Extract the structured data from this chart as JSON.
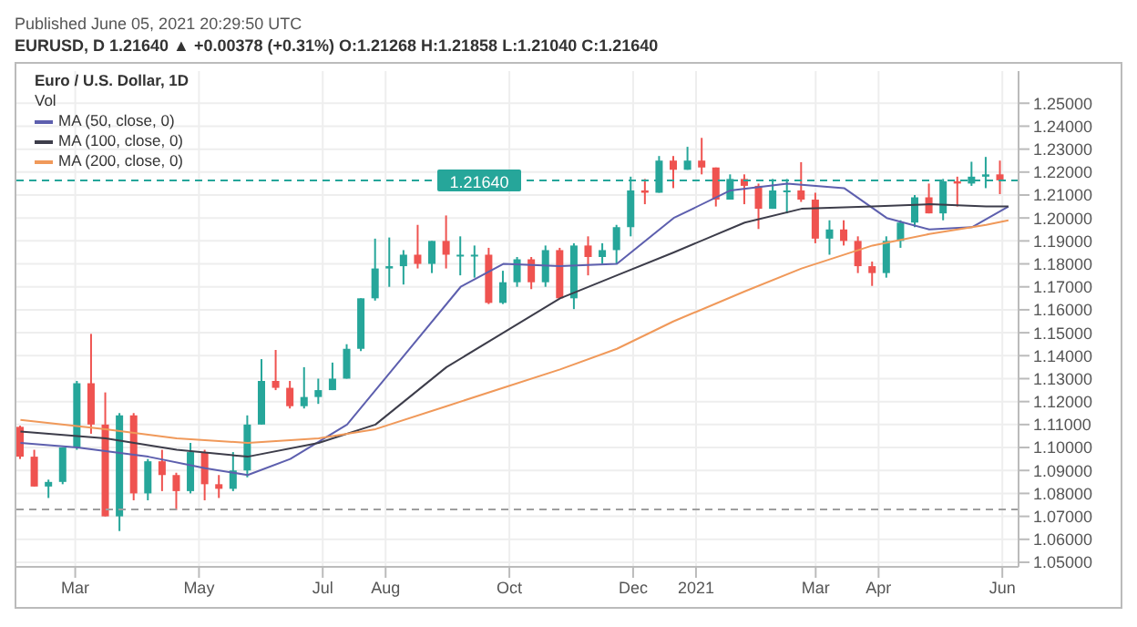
{
  "chart_data": {
    "type": "candlestick",
    "title": "Euro / U.S. Dollar, 1D",
    "subtitle": "EURUSD, D 1.21640 ▲ +0.00378 (+0.31%) O:1.21268 H:1.21858 L:1.21040 C:1.21640",
    "annotations": [
      "Published June 05, 2021 20:29:50 UTC",
      "Vol"
    ],
    "x": [
      "2020-02-03",
      "2020-02-10",
      "2020-02-17",
      "2020-02-24",
      "2020-03-02",
      "2020-03-09",
      "2020-03-16",
      "2020-03-23",
      "2020-03-30",
      "2020-04-06",
      "2020-04-13",
      "2020-04-20",
      "2020-04-27",
      "2020-05-04",
      "2020-05-11",
      "2020-05-18",
      "2020-05-25",
      "2020-06-01",
      "2020-06-08",
      "2020-06-15",
      "2020-06-22",
      "2020-06-29",
      "2020-07-06",
      "2020-07-13",
      "2020-07-20",
      "2020-07-27",
      "2020-08-03",
      "2020-08-10",
      "2020-08-17",
      "2020-08-24",
      "2020-08-31",
      "2020-09-07",
      "2020-09-14",
      "2020-09-21",
      "2020-09-28",
      "2020-10-05",
      "2020-10-12",
      "2020-10-19",
      "2020-10-26",
      "2020-11-02",
      "2020-11-09",
      "2020-11-16",
      "2020-11-23",
      "2020-11-30",
      "2020-12-07",
      "2020-12-14",
      "2020-12-21",
      "2020-12-28",
      "2021-01-04",
      "2021-01-11",
      "2021-01-18",
      "2021-01-25",
      "2021-02-01",
      "2021-02-08",
      "2021-02-15",
      "2021-02-22",
      "2021-03-01",
      "2021-03-08",
      "2021-03-15",
      "2021-03-22",
      "2021-03-29",
      "2021-04-05",
      "2021-04-12",
      "2021-04-19",
      "2021-04-26",
      "2021-05-03",
      "2021-05-10",
      "2021-05-17",
      "2021-05-24",
      "2021-05-31"
    ],
    "ohlc": [
      [
        1.109,
        1.1095,
        1.095,
        1.096
      ],
      [
        1.096,
        1.099,
        1.083,
        1.083
      ],
      [
        1.083,
        1.086,
        1.078,
        1.085
      ],
      [
        1.085,
        1.1,
        1.084,
        1.1
      ],
      [
        1.1,
        1.129,
        1.099,
        1.128
      ],
      [
        1.128,
        1.1495,
        1.106,
        1.11
      ],
      [
        1.11,
        1.124,
        1.07,
        1.07
      ],
      [
        1.07,
        1.115,
        1.0636,
        1.114
      ],
      [
        1.114,
        1.115,
        1.077,
        1.08
      ],
      [
        1.08,
        1.095,
        1.077,
        1.094
      ],
      [
        1.094,
        1.099,
        1.081,
        1.088
      ],
      [
        1.088,
        1.089,
        1.0727,
        1.081
      ],
      [
        1.081,
        1.102,
        1.08,
        1.098
      ],
      [
        1.098,
        1.099,
        1.077,
        1.084
      ],
      [
        1.084,
        1.088,
        1.078,
        1.082
      ],
      [
        1.082,
        1.098,
        1.081,
        1.09
      ],
      [
        1.09,
        1.114,
        1.087,
        1.11
      ],
      [
        1.11,
        1.1385,
        1.11,
        1.129
      ],
      [
        1.129,
        1.1425,
        1.125,
        1.126
      ],
      [
        1.126,
        1.129,
        1.117,
        1.118
      ],
      [
        1.118,
        1.135,
        1.117,
        1.122
      ],
      [
        1.122,
        1.13,
        1.119,
        1.125
      ],
      [
        1.125,
        1.137,
        1.125,
        1.13
      ],
      [
        1.13,
        1.145,
        1.13,
        1.143
      ],
      [
        1.143,
        1.165,
        1.142,
        1.165
      ],
      [
        1.165,
        1.191,
        1.164,
        1.178
      ],
      [
        1.178,
        1.1915,
        1.17,
        1.179
      ],
      [
        1.179,
        1.186,
        1.171,
        1.184
      ],
      [
        1.184,
        1.197,
        1.178,
        1.18
      ],
      [
        1.18,
        1.19,
        1.176,
        1.19
      ],
      [
        1.19,
        1.2011,
        1.178,
        1.184
      ],
      [
        1.184,
        1.192,
        1.175,
        1.184
      ],
      [
        1.184,
        1.188,
        1.174,
        1.184
      ],
      [
        1.184,
        1.187,
        1.1625,
        1.163
      ],
      [
        1.163,
        1.177,
        1.1625,
        1.172
      ],
      [
        1.172,
        1.183,
        1.17,
        1.182
      ],
      [
        1.182,
        1.183,
        1.169,
        1.172
      ],
      [
        1.172,
        1.188,
        1.17,
        1.186
      ],
      [
        1.186,
        1.187,
        1.165,
        1.165
      ],
      [
        1.165,
        1.189,
        1.1603,
        1.188
      ],
      [
        1.188,
        1.192,
        1.175,
        1.183
      ],
      [
        1.183,
        1.189,
        1.18,
        1.186
      ],
      [
        1.186,
        1.197,
        1.18,
        1.196
      ],
      [
        1.196,
        1.218,
        1.192,
        1.212
      ],
      [
        1.212,
        1.217,
        1.206,
        1.211
      ],
      [
        1.211,
        1.227,
        1.211,
        1.225
      ],
      [
        1.225,
        1.227,
        1.213,
        1.221
      ],
      [
        1.221,
        1.231,
        1.221,
        1.225
      ],
      [
        1.225,
        1.2349,
        1.219,
        1.222
      ],
      [
        1.222,
        1.222,
        1.205,
        1.208
      ],
      [
        1.208,
        1.219,
        1.208,
        1.217
      ],
      [
        1.217,
        1.219,
        1.206,
        1.214
      ],
      [
        1.214,
        1.215,
        1.1952,
        1.204
      ],
      [
        1.204,
        1.217,
        1.204,
        1.212
      ],
      [
        1.212,
        1.217,
        1.202,
        1.212
      ],
      [
        1.212,
        1.2243,
        1.207,
        1.208
      ],
      [
        1.208,
        1.211,
        1.189,
        1.191
      ],
      [
        1.191,
        1.199,
        1.184,
        1.195
      ],
      [
        1.195,
        1.199,
        1.188,
        1.19
      ],
      [
        1.19,
        1.192,
        1.176,
        1.179
      ],
      [
        1.179,
        1.181,
        1.1704,
        1.176
      ],
      [
        1.176,
        1.192,
        1.174,
        1.19
      ],
      [
        1.19,
        1.199,
        1.187,
        1.198
      ],
      [
        1.198,
        1.21,
        1.196,
        1.209
      ],
      [
        1.209,
        1.215,
        1.202,
        1.202
      ],
      [
        1.202,
        1.217,
        1.199,
        1.216
      ],
      [
        1.216,
        1.218,
        1.205,
        1.215
      ],
      [
        1.215,
        1.2245,
        1.214,
        1.218
      ],
      [
        1.218,
        1.2266,
        1.213,
        1.219
      ],
      [
        1.219,
        1.225,
        1.2104,
        1.2164
      ]
    ],
    "colors": [
      "#ef5350",
      "#ef5350",
      "#26a69a",
      "#26a69a",
      "#26a69a",
      "#ef5350",
      "#ef5350",
      "#26a69a",
      "#ef5350",
      "#26a69a",
      "#ef5350",
      "#ef5350",
      "#26a69a",
      "#ef5350",
      "#ef5350",
      "#26a69a",
      "#26a69a",
      "#26a69a",
      "#ef5350",
      "#ef5350",
      "#26a69a",
      "#26a69a",
      "#26a69a",
      "#26a69a",
      "#26a69a",
      "#26a69a",
      "#26a69a",
      "#26a69a",
      "#ef5350",
      "#26a69a",
      "#ef5350",
      "#26a69a",
      "#26a69a",
      "#ef5350",
      "#26a69a",
      "#26a69a",
      "#ef5350",
      "#26a69a",
      "#ef5350",
      "#26a69a",
      "#ef5350",
      "#26a69a",
      "#26a69a",
      "#26a69a",
      "#ef5350",
      "#26a69a",
      "#ef5350",
      "#26a69a",
      "#ef5350",
      "#ef5350",
      "#26a69a",
      "#ef5350",
      "#ef5350",
      "#26a69a",
      "#26a69a",
      "#ef5350",
      "#ef5350",
      "#26a69a",
      "#ef5350",
      "#ef5350",
      "#ef5350",
      "#26a69a",
      "#26a69a",
      "#26a69a",
      "#ef5350",
      "#26a69a",
      "#ef5350",
      "#26a69a",
      "#26a69a",
      "#ef5350"
    ],
    "series": [
      {
        "name": "MA (50, close, 0)",
        "type": "line",
        "color": "#5d5fae",
        "x": [
          "2020-02-03",
          "2020-03-02",
          "2020-04-06",
          "2020-05-04",
          "2020-05-25",
          "2020-06-15",
          "2020-07-13",
          "2020-08-10",
          "2020-09-07",
          "2020-09-28",
          "2020-10-26",
          "2020-11-23",
          "2020-12-21",
          "2021-01-18",
          "2021-02-15",
          "2021-03-15",
          "2021-04-05",
          "2021-04-26",
          "2021-05-17",
          "2021-06-04"
        ],
        "values": [
          1.102,
          1.1,
          1.096,
          1.091,
          1.088,
          1.095,
          1.11,
          1.14,
          1.17,
          1.18,
          1.179,
          1.18,
          1.2,
          1.212,
          1.215,
          1.213,
          1.2,
          1.195,
          1.196,
          1.205
        ]
      },
      {
        "name": "MA (100, close, 0)",
        "type": "line",
        "color": "#3d3d4a",
        "x": [
          "2020-02-03",
          "2020-03-16",
          "2020-04-20",
          "2020-05-25",
          "2020-06-29",
          "2020-07-27",
          "2020-08-31",
          "2020-09-28",
          "2020-10-26",
          "2020-11-23",
          "2020-12-21",
          "2021-01-25",
          "2021-02-22",
          "2021-03-29",
          "2021-04-26",
          "2021-05-24",
          "2021-06-04"
        ],
        "values": [
          1.107,
          1.104,
          1.099,
          1.096,
          1.102,
          1.11,
          1.135,
          1.15,
          1.165,
          1.175,
          1.185,
          1.198,
          1.204,
          1.205,
          1.206,
          1.205,
          1.205
        ]
      },
      {
        "name": "MA (200, close, 0)",
        "type": "line",
        "color": "#f0995a",
        "x": [
          "2020-02-03",
          "2020-03-16",
          "2020-04-20",
          "2020-05-25",
          "2020-06-29",
          "2020-07-27",
          "2020-08-31",
          "2020-09-28",
          "2020-10-26",
          "2020-11-23",
          "2020-12-21",
          "2021-01-25",
          "2021-02-22",
          "2021-03-29",
          "2021-04-26",
          "2021-05-24",
          "2021-06-04"
        ],
        "values": [
          1.112,
          1.108,
          1.104,
          1.102,
          1.104,
          1.108,
          1.118,
          1.126,
          1.134,
          1.143,
          1.155,
          1.168,
          1.178,
          1.188,
          1.193,
          1.197,
          1.199
        ]
      }
    ],
    "xlim": [
      "2020-02-01",
      "2021-06-09"
    ],
    "xticks": [
      {
        "value": "2020-03-01",
        "label": "Mar"
      },
      {
        "value": "2020-05-01",
        "label": "May"
      },
      {
        "value": "2020-07-01",
        "label": "Jul"
      },
      {
        "value": "2020-08-01",
        "label": "Aug"
      },
      {
        "value": "2020-10-01",
        "label": "Oct"
      },
      {
        "value": "2020-12-01",
        "label": "Dec"
      },
      {
        "value": "2021-01-01",
        "label": "2021"
      },
      {
        "value": "2021-03-01",
        "label": "Mar"
      },
      {
        "value": "2021-04-01",
        "label": "Apr"
      },
      {
        "value": "2021-06-01",
        "label": "Jun"
      }
    ],
    "ylim": [
      1.048,
      1.264
    ],
    "yticks": [
      {
        "value": 1.05,
        "label": "1.05000"
      },
      {
        "value": 1.06,
        "label": "1.06000"
      },
      {
        "value": 1.07,
        "label": "1.07000"
      },
      {
        "value": 1.08,
        "label": "1.08000"
      },
      {
        "value": 1.09,
        "label": "1.09000"
      },
      {
        "value": 1.1,
        "label": "1.10000"
      },
      {
        "value": 1.11,
        "label": "1.11000"
      },
      {
        "value": 1.12,
        "label": "1.12000"
      },
      {
        "value": 1.13,
        "label": "1.13000"
      },
      {
        "value": 1.14,
        "label": "1.14000"
      },
      {
        "value": 1.15,
        "label": "1.15000"
      },
      {
        "value": 1.16,
        "label": "1.16000"
      },
      {
        "value": 1.17,
        "label": "1.17000"
      },
      {
        "value": 1.18,
        "label": "1.18000"
      },
      {
        "value": 1.19,
        "label": "1.19000"
      },
      {
        "value": 1.2,
        "label": "1.20000"
      },
      {
        "value": 1.21,
        "label": "1.21000"
      },
      {
        "value": 1.22,
        "label": "1.22000"
      },
      {
        "value": 1.23,
        "label": "1.23000"
      },
      {
        "value": 1.24,
        "label": "1.24000"
      },
      {
        "value": 1.25,
        "label": "1.25000"
      }
    ],
    "ref_lines": [
      {
        "axis": "y",
        "value": 1.2164,
        "label": "1.21640",
        "color": "#26a69a",
        "line_style": "dashed"
      },
      {
        "axis": "y",
        "value": 1.073,
        "color": "#9e9e9e",
        "line_style": "dashed"
      }
    ],
    "grid": true,
    "legend": "top left"
  }
}
